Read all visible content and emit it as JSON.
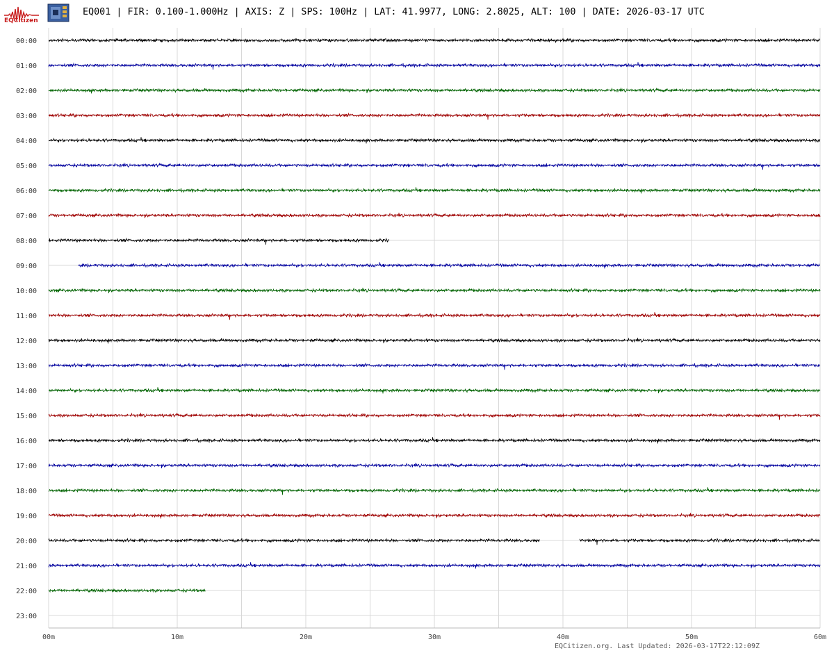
{
  "header": {
    "logo_text": "EQCitizen",
    "title": "EQ001 | FIR: 0.100-1.000Hz | AXIS: Z | SPS: 100Hz | LAT: 41.9977, LONG: 2.8025, ALT: 100 | DATE: 2026-03-17 UTC"
  },
  "footer": {
    "text": "EQCitizen.org. Last Updated: 2026-03-17T22:12:09Z"
  },
  "colors": {
    "trace_cycle": [
      "#000000",
      "#0000a0",
      "#006400",
      "#a00000"
    ],
    "grid": "#d8d8d8",
    "logo": "#c81e1e"
  },
  "chart_data": {
    "type": "line",
    "title": "",
    "xlabel": "",
    "ylabel": "",
    "x_range_minutes": [
      0,
      60
    ],
    "x_ticks": [
      "00m",
      "10m",
      "20m",
      "30m",
      "40m",
      "50m",
      "60m"
    ],
    "x_tick_values": [
      0,
      10,
      20,
      30,
      40,
      50,
      60
    ],
    "grid": true,
    "rows": [
      {
        "label": "00:00",
        "segments": [
          [
            0,
            60
          ]
        ]
      },
      {
        "label": "01:00",
        "segments": [
          [
            0,
            60
          ]
        ]
      },
      {
        "label": "02:00",
        "segments": [
          [
            0,
            60
          ]
        ]
      },
      {
        "label": "03:00",
        "segments": [
          [
            0,
            60
          ]
        ]
      },
      {
        "label": "04:00",
        "segments": [
          [
            0,
            60
          ]
        ]
      },
      {
        "label": "05:00",
        "segments": [
          [
            0,
            60
          ]
        ]
      },
      {
        "label": "06:00",
        "segments": [
          [
            0,
            60
          ]
        ]
      },
      {
        "label": "07:00",
        "segments": [
          [
            0,
            60
          ]
        ]
      },
      {
        "label": "08:00",
        "segments": [
          [
            0,
            26.5
          ]
        ]
      },
      {
        "label": "09:00",
        "segments": [
          [
            2.3,
            60
          ]
        ]
      },
      {
        "label": "10:00",
        "segments": [
          [
            0,
            60
          ]
        ]
      },
      {
        "label": "11:00",
        "segments": [
          [
            0,
            60
          ]
        ]
      },
      {
        "label": "12:00",
        "segments": [
          [
            0,
            60
          ]
        ]
      },
      {
        "label": "13:00",
        "segments": [
          [
            0,
            60
          ]
        ]
      },
      {
        "label": "14:00",
        "segments": [
          [
            0,
            60
          ]
        ]
      },
      {
        "label": "15:00",
        "segments": [
          [
            0,
            60
          ]
        ]
      },
      {
        "label": "16:00",
        "segments": [
          [
            0,
            60
          ]
        ]
      },
      {
        "label": "17:00",
        "segments": [
          [
            0,
            60
          ]
        ]
      },
      {
        "label": "18:00",
        "segments": [
          [
            0,
            60
          ]
        ]
      },
      {
        "label": "19:00",
        "segments": [
          [
            0,
            60
          ]
        ]
      },
      {
        "label": "20:00",
        "segments": [
          [
            0,
            38.2
          ],
          [
            41.3,
            60
          ]
        ]
      },
      {
        "label": "21:00",
        "segments": [
          [
            0,
            60
          ]
        ]
      },
      {
        "label": "22:00",
        "segments": [
          [
            0,
            12.2
          ]
        ]
      },
      {
        "label": "23:00",
        "segments": []
      }
    ]
  }
}
